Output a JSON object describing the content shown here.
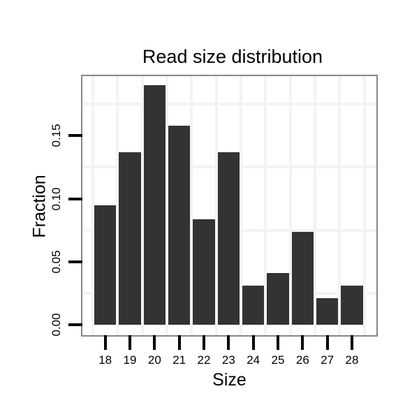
{
  "title": "Read size distribution",
  "colors": {
    "bar_fill": "#333333",
    "panel_border": "#878787",
    "gridline": "#f3f3f3",
    "tick": "#000000",
    "text": "#000000",
    "background": "#ffffff"
  },
  "chart_data": {
    "type": "bar",
    "title": "Read size distribution",
    "xlabel": "Size",
    "ylabel": "Fraction",
    "categories": [
      "18",
      "19",
      "20",
      "21",
      "22",
      "23",
      "24",
      "25",
      "26",
      "27",
      "28"
    ],
    "values": [
      0.095,
      0.137,
      0.19,
      0.158,
      0.084,
      0.137,
      0.031,
      0.041,
      0.074,
      0.021,
      0.031
    ],
    "ytick_values": [
      0.0,
      0.05,
      0.1,
      0.15
    ],
    "ytick_labels": [
      "0.00",
      "0.05",
      "0.10",
      "0.15"
    ],
    "ylim": [
      -0.008,
      0.198
    ],
    "grid": "minor gridlines only, at 0.025-step midpoints and between categories",
    "legend": "none",
    "bar_color": "#333333"
  }
}
